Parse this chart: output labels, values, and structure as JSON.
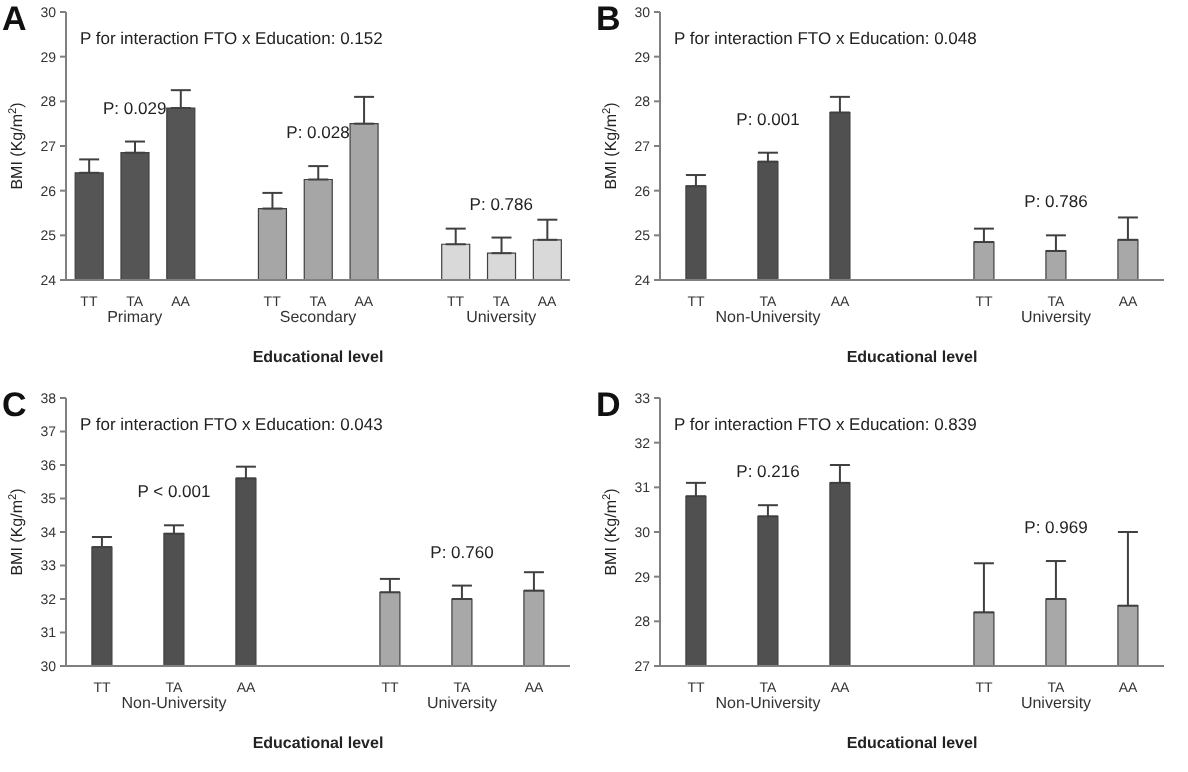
{
  "chart_data": [
    {
      "type": "bar",
      "title": "A",
      "xlabel": "Educational level",
      "ylabel": "BMI (Kg/m$^{2}$)",
      "categories": [
        "TT",
        "TA",
        "AA",
        null,
        "TT",
        "TA",
        "AA",
        null,
        "TT",
        "TA",
        "AA"
      ],
      "ylim": [
        24,
        30
      ],
      "yticks": [
        24,
        25,
        26,
        27,
        28,
        29,
        30
      ],
      "series": [
        {
          "name": "Primary",
          "color": "#555555",
          "values": [
            26.4,
            26.85,
            27.85,
            null,
            null,
            null,
            null,
            null,
            null,
            null,
            null
          ],
          "errors": [
            [
              26.4,
              26.7
            ],
            [
              26.85,
              27.1
            ],
            [
              27.85,
              28.25
            ],
            null,
            null,
            null,
            null,
            null,
            null,
            null,
            null
          ]
        },
        {
          "name": "Secondary",
          "color": "#a6a6a6",
          "values": [
            null,
            null,
            null,
            null,
            25.6,
            26.25,
            27.5,
            null,
            null,
            null,
            null
          ],
          "errors": [
            null,
            null,
            null,
            null,
            [
              25.6,
              25.95
            ],
            [
              26.25,
              26.55
            ],
            [
              27.5,
              28.1
            ],
            null,
            null,
            null,
            null
          ]
        },
        {
          "name": "University",
          "color": "#d9d9d9",
          "values": [
            null,
            null,
            null,
            null,
            null,
            null,
            null,
            null,
            24.8,
            24.6,
            24.9
          ],
          "errors": [
            null,
            null,
            null,
            null,
            null,
            null,
            null,
            null,
            [
              24.8,
              25.15
            ],
            [
              24.6,
              24.95
            ],
            [
              24.9,
              25.35
            ]
          ]
        }
      ],
      "annotations": [
        "P for interaction FTO x Education: 0.152",
        "P: 0.029",
        "P: 0.028",
        "P: 0.786"
      ]
    },
    {
      "type": "bar",
      "title": "B",
      "xlabel": "Educational level",
      "ylabel": "BMI (Kg/m$^{2}$)",
      "categories": [
        "TT",
        "TA",
        "AA",
        null,
        "TT",
        "TA",
        "AA"
      ],
      "ylim": [
        24,
        30
      ],
      "yticks": [
        24,
        25,
        26,
        27,
        28,
        29,
        30
      ],
      "series": [
        {
          "name": "Non-University",
          "color": "#505050",
          "values": [
            26.1,
            26.65,
            27.75,
            null,
            null,
            null,
            null
          ],
          "errors": [
            [
              26.1,
              26.35
            ],
            [
              26.65,
              26.85
            ],
            [
              27.75,
              28.1
            ],
            null,
            null,
            null,
            null
          ]
        },
        {
          "name": "University",
          "color": "#a8a8a8",
          "values": [
            null,
            null,
            null,
            null,
            24.85,
            24.65,
            24.9
          ],
          "errors": [
            null,
            null,
            null,
            null,
            [
              24.85,
              25.15
            ],
            [
              24.65,
              25.0
            ],
            [
              24.9,
              25.4
            ]
          ]
        }
      ],
      "annotations": [
        "P for interaction FTO x Education: 0.048",
        "P: 0.001",
        "P: 0.786"
      ]
    },
    {
      "type": "bar",
      "title": "C",
      "xlabel": "Educational level",
      "ylabel": "BMI (Kg/m$^{2}$)",
      "categories": [
        "TT",
        "TA",
        "AA",
        null,
        "TT",
        "TA",
        "AA"
      ],
      "ylim": [
        30,
        38
      ],
      "yticks": [
        30,
        31,
        32,
        33,
        34,
        35,
        36,
        37,
        38
      ],
      "series": [
        {
          "name": "Non-University",
          "color": "#505050",
          "values": [
            33.55,
            33.95,
            35.6,
            null,
            null,
            null,
            null
          ],
          "errors": [
            [
              33.55,
              33.85
            ],
            [
              33.95,
              34.2
            ],
            [
              35.6,
              35.95
            ],
            null,
            null,
            null,
            null
          ]
        },
        {
          "name": "University",
          "color": "#a8a8a8",
          "values": [
            null,
            null,
            null,
            null,
            32.2,
            32.0,
            32.25
          ],
          "errors": [
            null,
            null,
            null,
            null,
            [
              32.2,
              32.6
            ],
            [
              32.0,
              32.4
            ],
            [
              32.25,
              32.8
            ]
          ]
        }
      ],
      "annotations": [
        "P for interaction FTO x Education: 0.043",
        "P < 0.001",
        "P: 0.760"
      ]
    },
    {
      "type": "bar",
      "title": "D",
      "xlabel": "Educational level",
      "ylabel": "BMI (Kg/m$^{2}$)",
      "categories": [
        "TT",
        "TA",
        "AA",
        null,
        "TT",
        "TA",
        "AA"
      ],
      "ylim": [
        27,
        33
      ],
      "yticks": [
        27,
        28,
        29,
        30,
        31,
        32,
        33
      ],
      "series": [
        {
          "name": "Non-University",
          "color": "#505050",
          "values": [
            30.8,
            30.35,
            31.1,
            null,
            null,
            null,
            null
          ],
          "errors": [
            [
              30.8,
              31.1
            ],
            [
              30.35,
              30.6
            ],
            [
              31.1,
              31.5
            ],
            null,
            null,
            null,
            null
          ]
        },
        {
          "name": "University",
          "color": "#a8a8a8",
          "values": [
            null,
            null,
            null,
            null,
            28.2,
            28.5,
            28.35
          ],
          "errors": [
            null,
            null,
            null,
            null,
            [
              28.2,
              29.3
            ],
            [
              28.5,
              29.35
            ],
            [
              28.35,
              30.0
            ]
          ]
        }
      ],
      "annotations": [
        "P for interaction FTO x Education: 0.839",
        "P: 0.216",
        "P: 0.969"
      ]
    }
  ]
}
